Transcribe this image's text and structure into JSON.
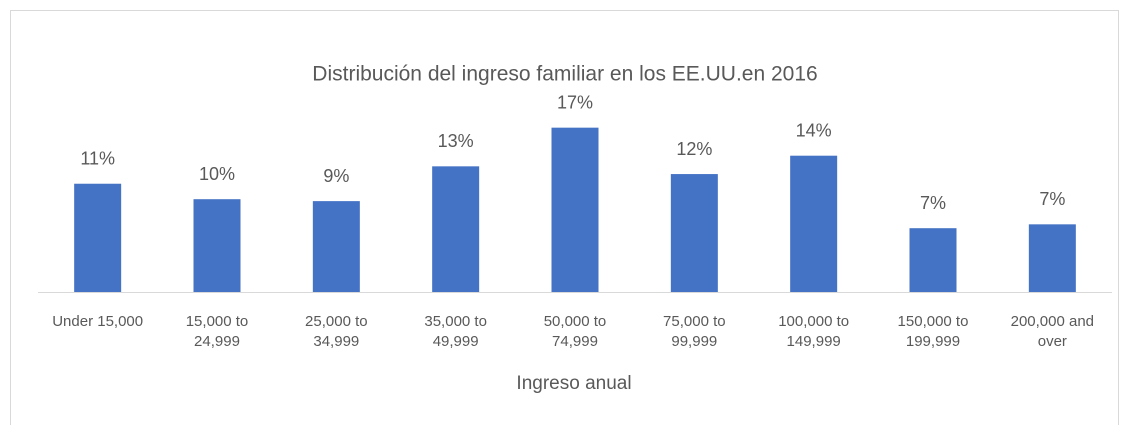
{
  "chart_data": {
    "type": "bar",
    "title": "Distribución del ingreso familiar en los EE.UU.en 2016",
    "x_label": "Ingreso anual",
    "categories": [
      "Under 15,000",
      "15,000 to 24,999",
      "25,000 to 34,999",
      "35,000 to 49,999",
      "50,000 to 74,999",
      "75,000 to 99,999",
      "100,000 to 149,999",
      "150,000 to 199,999",
      "200,000 and over"
    ],
    "values": [
      11.2,
      9.6,
      9.4,
      13.0,
      17.0,
      12.2,
      14.1,
      6.6,
      7.0
    ],
    "value_labels": [
      "11%",
      "10%",
      "9%",
      "13%",
      "17%",
      "12%",
      "14%",
      "7%",
      "7%"
    ],
    "color": "#4472c4",
    "ylim": [
      0,
      18
    ]
  }
}
